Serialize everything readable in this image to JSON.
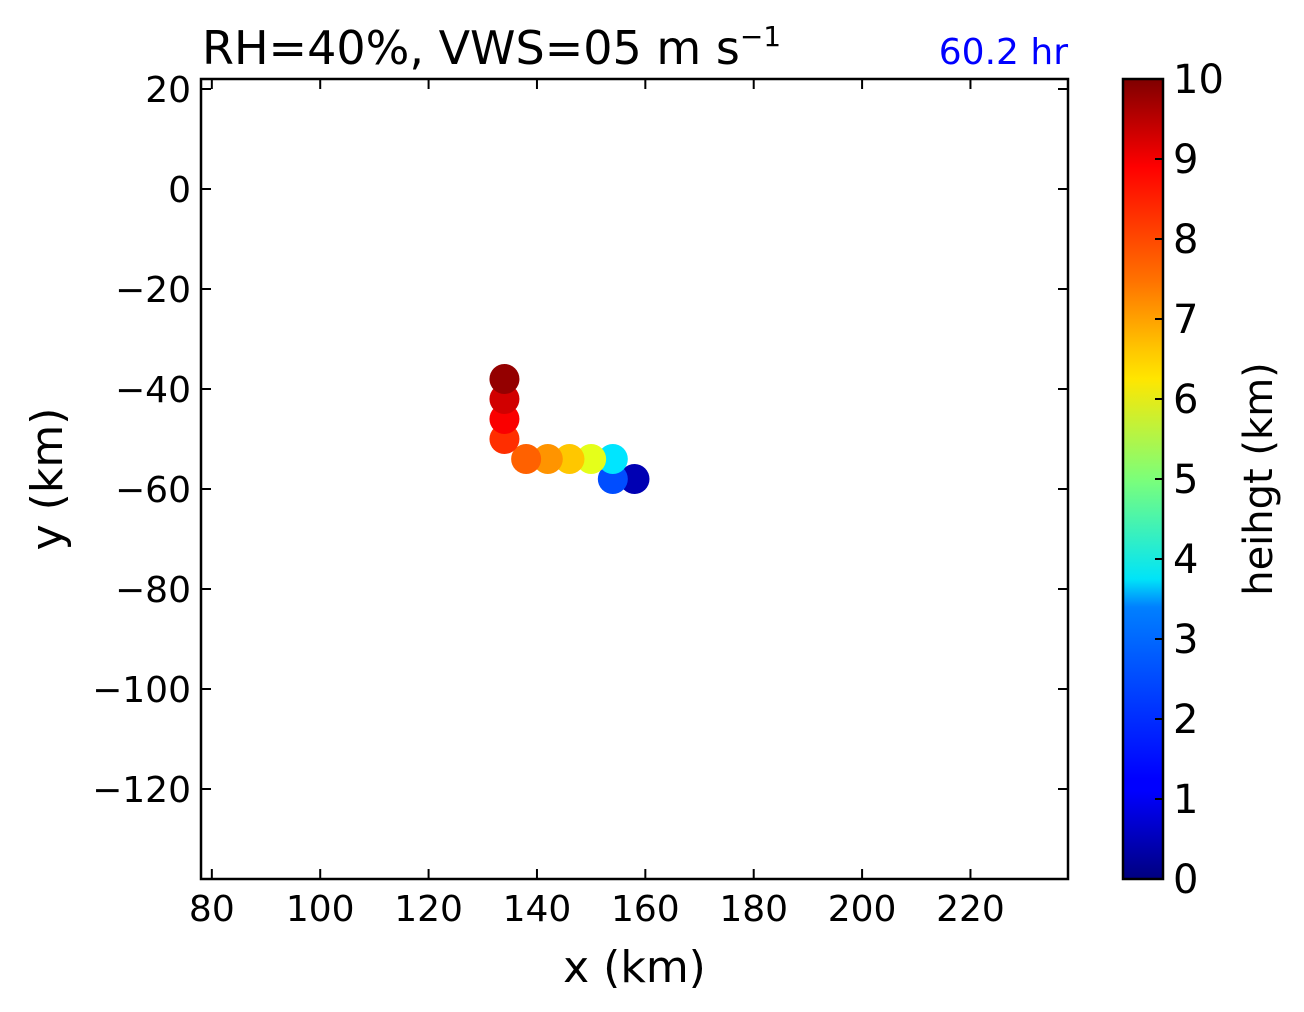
{
  "chart_data": {
    "type": "scatter",
    "title": "RH=40%, VWS=05 m s",
    "title_superscript": "−1",
    "subtitle": "60.2 hr",
    "subtitle_color": "#0000ff",
    "xlabel": "x (km)",
    "ylabel": "y (km)",
    "xlim": [
      78,
      238
    ],
    "ylim": [
      -138,
      22
    ],
    "xticks": [
      80,
      100,
      120,
      140,
      160,
      180,
      200,
      220
    ],
    "yticks": [
      20,
      0,
      -20,
      -40,
      -60,
      -80,
      -100,
      -120
    ],
    "xtick_labels": [
      "80",
      "100",
      "120",
      "140",
      "160",
      "180",
      "200",
      "220"
    ],
    "ytick_labels": [
      "20",
      "0",
      "−20",
      "−40",
      "−60",
      "−80",
      "−100",
      "−120"
    ],
    "grid": false,
    "colormap": "jet",
    "colorbar": {
      "label": "heihgt (km)",
      "range": [
        0,
        10
      ],
      "ticks": [
        "0",
        "1",
        "2",
        "3",
        "4",
        "5",
        "6",
        "7",
        "8",
        "9",
        "10"
      ]
    },
    "points": [
      {
        "x": 158,
        "y": -58,
        "height": 0.5
      },
      {
        "x": 154,
        "y": -58,
        "height": 2
      },
      {
        "x": 154,
        "y": -54,
        "height": 3.5
      },
      {
        "x": 150,
        "y": -54,
        "height": 6
      },
      {
        "x": 146,
        "y": -54,
        "height": 6.8
      },
      {
        "x": 142,
        "y": -54,
        "height": 7.3
      },
      {
        "x": 138,
        "y": -54,
        "height": 7.8
      },
      {
        "x": 134,
        "y": -50,
        "height": 8.3
      },
      {
        "x": 134,
        "y": -46,
        "height": 8.8
      },
      {
        "x": 134,
        "y": -42,
        "height": 9.2
      },
      {
        "x": 134,
        "y": -38,
        "height": 9.8
      }
    ]
  }
}
